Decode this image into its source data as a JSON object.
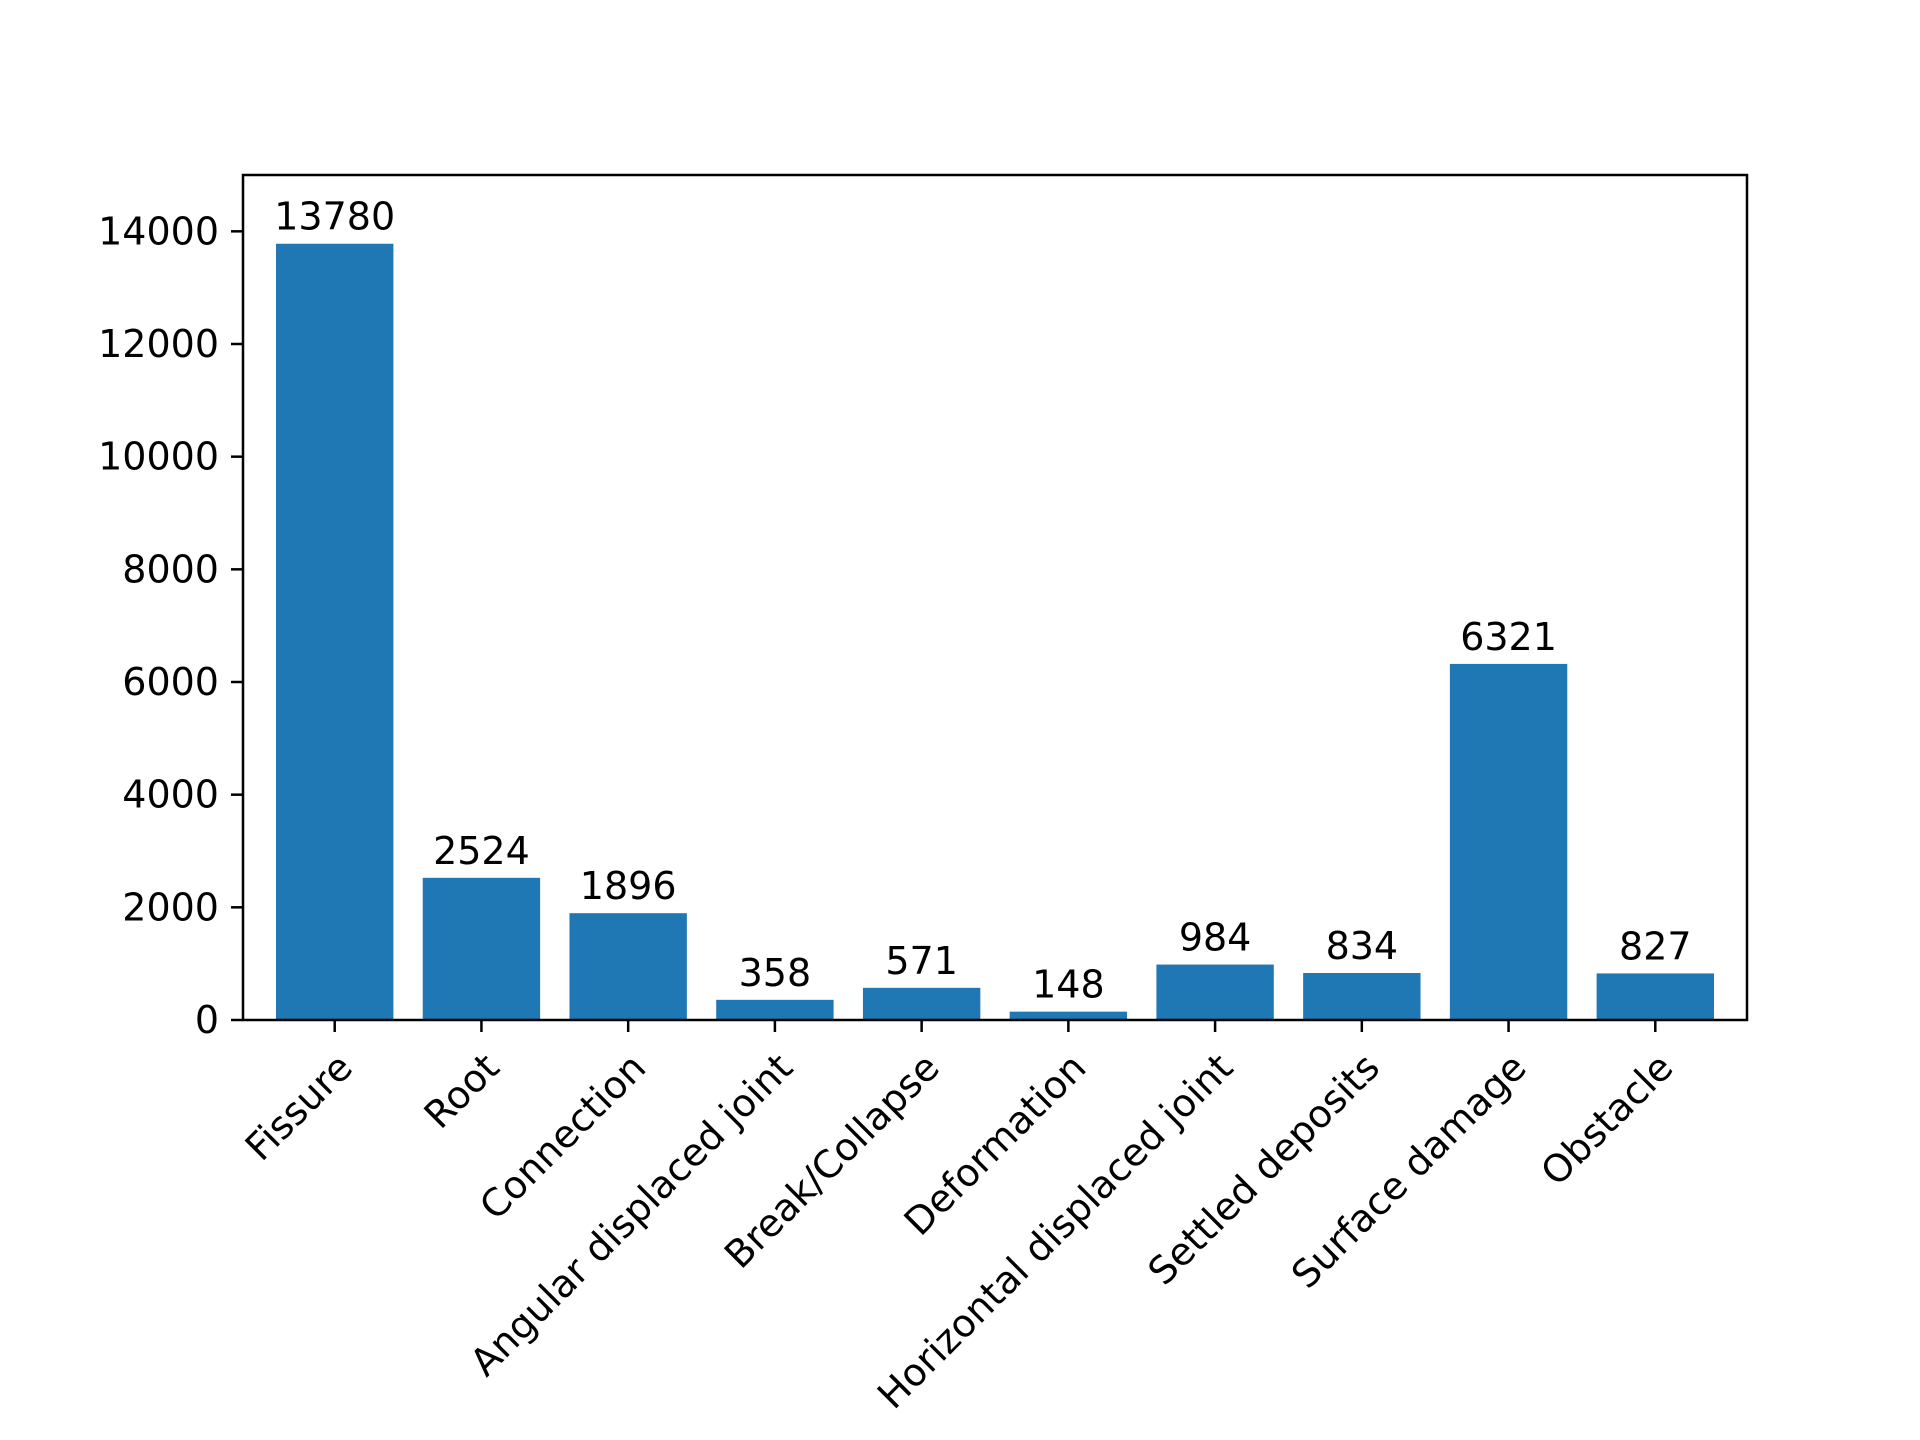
{
  "chart_data": {
    "type": "bar",
    "title": "",
    "xlabel": "",
    "ylabel": "",
    "categories": [
      "Fissure",
      "Root",
      "Connection",
      "Angular displaced joint",
      "Break/Collapse",
      "Deformation",
      "Horizontal displaced joint",
      "Settled deposits",
      "Surface damage",
      "Obstacle"
    ],
    "values": [
      13780,
      2524,
      1896,
      358,
      571,
      148,
      984,
      834,
      6321,
      827
    ],
    "ylim": [
      0,
      15000
    ],
    "yticks": [
      0,
      2000,
      4000,
      6000,
      8000,
      10000,
      12000,
      14000
    ],
    "bar_color": "#1f77b4",
    "grid": false,
    "legend": "none",
    "data_labels": true
  }
}
